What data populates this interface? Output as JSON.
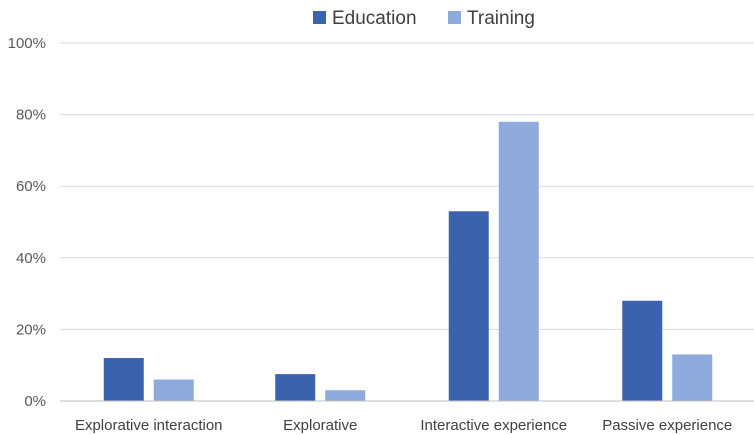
{
  "chart_data": {
    "type": "bar",
    "categories": [
      "Explorative interaction",
      "Explorative",
      "Interactive experience",
      "Passive experience"
    ],
    "series": [
      {
        "name": "Education",
        "color": "#3b63ad",
        "values": [
          12,
          7.5,
          53,
          28
        ]
      },
      {
        "name": "Training",
        "color": "#8faadc",
        "values": [
          6,
          3,
          78,
          13
        ]
      }
    ],
    "y_ticks": [
      "0%",
      "20%",
      "40%",
      "60%",
      "80%",
      "100%"
    ],
    "ylim": [
      0,
      100
    ],
    "y_unit": "%",
    "grid": true,
    "legend_position": "top-center"
  }
}
